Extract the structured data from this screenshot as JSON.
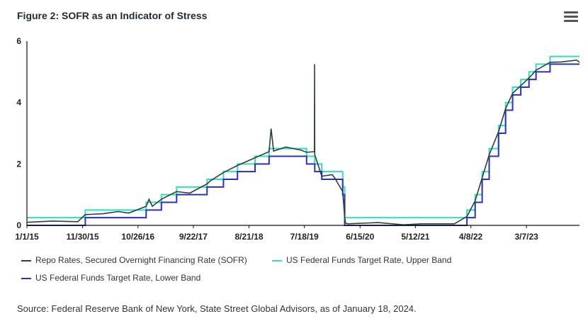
{
  "title": "Figure 2: SOFR as an Indicator of Stress",
  "source": "Source: Federal Reserve Bank of New York, State Street Global Advisors, as of January 18, 2024.",
  "colors": {
    "sofr": "#2e3f3b",
    "upper": "#2ee0bd",
    "lower": "#2d2fc4",
    "axis": "#111111",
    "grid": "#e6e6e6"
  },
  "menu_icon": "hamburger-menu-icon",
  "chart_data": {
    "type": "line",
    "title": "Figure 2: SOFR as an Indicator of Stress",
    "xlabel": "",
    "ylabel": "",
    "x_range": [
      "2015-01-01",
      "2024-01-18"
    ],
    "ylim": [
      0,
      6
    ],
    "yticks": [
      0,
      2,
      4,
      6
    ],
    "xticks": [
      "1/1/15",
      "11/30/15",
      "10/26/16",
      "9/22/17",
      "8/21/18",
      "7/18/19",
      "6/15/20",
      "5/12/21",
      "4/8/22",
      "3/7/23"
    ],
    "legend_position": "bottom",
    "series": [
      {
        "name": "US Federal Funds Target Rate, Upper Band",
        "key": "upper",
        "x": [
          "2015-01-01",
          "2015-12-16",
          "2016-12-14",
          "2017-03-15",
          "2017-06-14",
          "2017-12-13",
          "2018-03-21",
          "2018-06-13",
          "2018-09-26",
          "2018-12-19",
          "2019-07-31",
          "2019-09-18",
          "2019-10-30",
          "2020-03-03",
          "2020-03-15",
          "2022-03-16",
          "2022-05-04",
          "2022-06-15",
          "2022-07-27",
          "2022-09-21",
          "2022-11-02",
          "2022-12-14",
          "2023-02-01",
          "2023-03-22",
          "2023-05-03",
          "2023-07-26",
          "2024-01-18"
        ],
        "values": [
          0.25,
          0.5,
          0.75,
          1.0,
          1.25,
          1.5,
          1.75,
          2.0,
          2.25,
          2.5,
          2.25,
          2.0,
          1.75,
          1.25,
          0.25,
          0.5,
          1.0,
          1.75,
          2.5,
          3.25,
          4.0,
          4.5,
          4.75,
          5.0,
          5.25,
          5.5,
          5.5
        ]
      },
      {
        "name": "US Federal Funds Target Rate, Lower Band",
        "key": "lower",
        "x": [
          "2015-01-01",
          "2015-12-16",
          "2016-12-14",
          "2017-03-15",
          "2017-06-14",
          "2017-12-13",
          "2018-03-21",
          "2018-06-13",
          "2018-09-26",
          "2018-12-19",
          "2019-07-31",
          "2019-09-18",
          "2019-10-30",
          "2020-03-03",
          "2020-03-15",
          "2022-03-16",
          "2022-05-04",
          "2022-06-15",
          "2022-07-27",
          "2022-09-21",
          "2022-11-02",
          "2022-12-14",
          "2023-02-01",
          "2023-03-22",
          "2023-05-03",
          "2023-07-26",
          "2024-01-18"
        ],
        "values": [
          0.0,
          0.25,
          0.5,
          0.75,
          1.0,
          1.25,
          1.5,
          1.75,
          2.0,
          2.25,
          2.0,
          1.75,
          1.5,
          1.0,
          0.0,
          0.25,
          0.75,
          1.5,
          2.25,
          3.0,
          3.75,
          4.25,
          4.5,
          4.75,
          5.0,
          5.25,
          5.25
        ]
      },
      {
        "name": "Repo Rates, Secured Overnight Financing Rate (SOFR)",
        "key": "sofr",
        "x": [
          "2015-01-01",
          "2015-06-01",
          "2015-11-01",
          "2015-12-16",
          "2016-04-01",
          "2016-06-30",
          "2016-09-01",
          "2016-12-14",
          "2016-12-31",
          "2017-01-20",
          "2017-03-15",
          "2017-06-14",
          "2017-09-01",
          "2017-12-13",
          "2018-01-02",
          "2018-03-21",
          "2018-06-13",
          "2018-09-26",
          "2018-12-19",
          "2018-12-31",
          "2019-01-15",
          "2019-03-29",
          "2019-06-28",
          "2019-07-31",
          "2019-09-16",
          "2019-09-17",
          "2019-09-18",
          "2019-10-30",
          "2019-12-31",
          "2020-01-15",
          "2020-03-03",
          "2020-03-15",
          "2020-03-20",
          "2020-04-01",
          "2020-10-01",
          "2021-03-01",
          "2021-06-17",
          "2021-12-31",
          "2022-03-16",
          "2022-05-04",
          "2022-06-15",
          "2022-07-27",
          "2022-09-21",
          "2022-11-02",
          "2022-12-14",
          "2023-02-01",
          "2023-03-22",
          "2023-05-03",
          "2023-07-26",
          "2023-09-30",
          "2023-12-31",
          "2024-01-18"
        ],
        "values": [
          0.1,
          0.14,
          0.12,
          0.35,
          0.38,
          0.45,
          0.4,
          0.62,
          0.85,
          0.62,
          0.85,
          1.1,
          1.05,
          1.35,
          1.45,
          1.72,
          1.95,
          2.2,
          2.4,
          3.15,
          2.42,
          2.55,
          2.45,
          2.38,
          2.4,
          5.25,
          2.3,
          1.6,
          1.65,
          1.55,
          1.1,
          0.25,
          0.08,
          0.05,
          0.09,
          0.02,
          0.05,
          0.05,
          0.29,
          0.8,
          1.55,
          2.3,
          3.05,
          3.8,
          4.3,
          4.55,
          4.8,
          5.05,
          5.31,
          5.32,
          5.38,
          5.31
        ]
      }
    ]
  },
  "legend": [
    {
      "key": "sofr",
      "label": "Repo Rates, Secured Overnight Financing Rate (SOFR)"
    },
    {
      "key": "upper",
      "label": "US Federal Funds Target Rate, Upper Band"
    },
    {
      "key": "lower",
      "label": "US Federal Funds Target Rate, Lower Band"
    }
  ]
}
